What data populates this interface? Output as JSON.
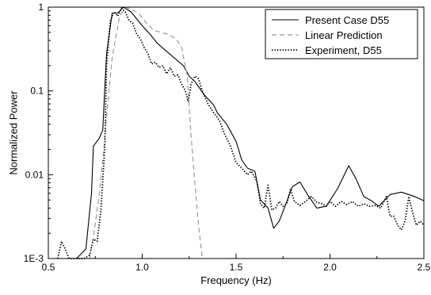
{
  "chart_data": {
    "type": "line",
    "title": "",
    "xlabel": "Frequency (Hz)",
    "ylabel": "Normalized Power",
    "xlim": [
      0.5,
      2.5
    ],
    "ylim": [
      0.001,
      1
    ],
    "yscale": "log",
    "grid": false,
    "legend_position": "top-right",
    "x_ticks": [
      {
        "value": 0.5,
        "label": "0.5"
      },
      {
        "value": 1.0,
        "label": "1.0"
      },
      {
        "value": 1.5,
        "label": "1.5"
      },
      {
        "value": 2.0,
        "label": "2.0"
      },
      {
        "value": 2.5,
        "label": "2.5"
      }
    ],
    "y_ticks": [
      {
        "value": 0.001,
        "label": "1E-3"
      },
      {
        "value": 0.01,
        "label": "0.01"
      },
      {
        "value": 0.1,
        "label": "0.1"
      },
      {
        "value": 1,
        "label": "1"
      }
    ],
    "series": [
      {
        "name": "Present Case D55",
        "style": "solid",
        "color": "#000000",
        "points": [
          [
            0.5,
            0.001
          ],
          [
            0.65,
            0.001
          ],
          [
            0.7,
            0.0013
          ],
          [
            0.73,
            0.006
          ],
          [
            0.74,
            0.022
          ],
          [
            0.77,
            0.027
          ],
          [
            0.79,
            0.034
          ],
          [
            0.8,
            0.1
          ],
          [
            0.81,
            0.28
          ],
          [
            0.84,
            0.85
          ],
          [
            0.87,
            0.85
          ],
          [
            0.9,
            1.0
          ],
          [
            0.94,
            0.88
          ],
          [
            1.0,
            0.6
          ],
          [
            1.04,
            0.48
          ],
          [
            1.08,
            0.37
          ],
          [
            1.12,
            0.31
          ],
          [
            1.16,
            0.26
          ],
          [
            1.22,
            0.2
          ],
          [
            1.25,
            0.15
          ],
          [
            1.28,
            0.13
          ],
          [
            1.33,
            0.09
          ],
          [
            1.38,
            0.068
          ],
          [
            1.4,
            0.055
          ],
          [
            1.45,
            0.04
          ],
          [
            1.5,
            0.025
          ],
          [
            1.53,
            0.015
          ],
          [
            1.56,
            0.012
          ],
          [
            1.6,
            0.011
          ],
          [
            1.63,
            0.005
          ],
          [
            1.67,
            0.004
          ],
          [
            1.7,
            0.0023
          ],
          [
            1.73,
            0.0028
          ],
          [
            1.8,
            0.0072
          ],
          [
            1.84,
            0.0082
          ],
          [
            1.88,
            0.0058
          ],
          [
            1.93,
            0.004
          ],
          [
            1.98,
            0.0042
          ],
          [
            2.04,
            0.0068
          ],
          [
            2.1,
            0.0128
          ],
          [
            2.14,
            0.0088
          ],
          [
            2.18,
            0.0055
          ],
          [
            2.22,
            0.0049
          ],
          [
            2.26,
            0.0042
          ],
          [
            2.32,
            0.0058
          ],
          [
            2.38,
            0.0062
          ],
          [
            2.45,
            0.0055
          ],
          [
            2.5,
            0.0049
          ]
        ]
      },
      {
        "name": "Linear Prediction",
        "style": "dashed",
        "color": "#9a9a9a",
        "points": [
          [
            0.72,
            0.001
          ],
          [
            0.74,
            0.0018
          ],
          [
            0.77,
            0.0055
          ],
          [
            0.8,
            0.025
          ],
          [
            0.81,
            0.05
          ],
          [
            0.84,
            0.25
          ],
          [
            0.88,
            0.8
          ],
          [
            0.92,
            0.99
          ],
          [
            0.95,
            0.92
          ],
          [
            0.98,
            0.85
          ],
          [
            1.02,
            0.66
          ],
          [
            1.06,
            0.53
          ],
          [
            1.1,
            0.5
          ],
          [
            1.14,
            0.47
          ],
          [
            1.18,
            0.42
          ],
          [
            1.21,
            0.33
          ],
          [
            1.24,
            0.15
          ],
          [
            1.26,
            0.03
          ],
          [
            1.28,
            0.008
          ],
          [
            1.3,
            0.0025
          ],
          [
            1.32,
            0.001
          ]
        ]
      },
      {
        "name": "Experiment, D55",
        "style": "dotted",
        "color": "#000000",
        "points": [
          [
            0.55,
            0.001
          ],
          [
            0.57,
            0.0016
          ],
          [
            0.59,
            0.0013
          ],
          [
            0.61,
            0.001
          ],
          [
            0.66,
            0.001
          ],
          [
            0.69,
            0.00085
          ],
          [
            0.72,
            0.0011
          ],
          [
            0.74,
            0.0017
          ],
          [
            0.76,
            0.0016
          ],
          [
            0.78,
            0.0038
          ],
          [
            0.8,
            0.02
          ],
          [
            0.81,
            0.2
          ],
          [
            0.83,
            0.68
          ],
          [
            0.85,
            0.88
          ],
          [
            0.87,
            0.78
          ],
          [
            0.89,
            0.97
          ],
          [
            0.91,
            0.87
          ],
          [
            0.93,
            0.7
          ],
          [
            0.95,
            0.64
          ],
          [
            0.97,
            0.48
          ],
          [
            0.99,
            0.42
          ],
          [
            1.01,
            0.33
          ],
          [
            1.03,
            0.28
          ],
          [
            1.05,
            0.21
          ],
          [
            1.07,
            0.22
          ],
          [
            1.09,
            0.19
          ],
          [
            1.11,
            0.2
          ],
          [
            1.13,
            0.16
          ],
          [
            1.15,
            0.19
          ],
          [
            1.17,
            0.15
          ],
          [
            1.19,
            0.155
          ],
          [
            1.21,
            0.12
          ],
          [
            1.23,
            0.1
          ],
          [
            1.245,
            0.075
          ],
          [
            1.26,
            0.12
          ],
          [
            1.28,
            0.15
          ],
          [
            1.3,
            0.14
          ],
          [
            1.32,
            0.1
          ],
          [
            1.35,
            0.07
          ],
          [
            1.38,
            0.055
          ],
          [
            1.41,
            0.045
          ],
          [
            1.44,
            0.03
          ],
          [
            1.47,
            0.022
          ],
          [
            1.5,
            0.014
          ],
          [
            1.53,
            0.012
          ],
          [
            1.56,
            0.01
          ],
          [
            1.58,
            0.011
          ],
          [
            1.61,
            0.0085
          ],
          [
            1.63,
            0.0045
          ],
          [
            1.65,
            0.004
          ],
          [
            1.67,
            0.0075
          ],
          [
            1.69,
            0.0038
          ],
          [
            1.71,
            0.004
          ],
          [
            1.73,
            0.0048
          ],
          [
            1.75,
            0.0042
          ],
          [
            1.77,
            0.0045
          ],
          [
            1.79,
            0.0068
          ],
          [
            1.81,
            0.0048
          ],
          [
            1.84,
            0.0043
          ],
          [
            1.87,
            0.0048
          ],
          [
            1.9,
            0.0055
          ],
          [
            1.93,
            0.0047
          ],
          [
            1.96,
            0.0045
          ],
          [
            1.98,
            0.0042
          ],
          [
            2.0,
            0.0048
          ],
          [
            2.03,
            0.0042
          ],
          [
            2.06,
            0.0048
          ],
          [
            2.09,
            0.0044
          ],
          [
            2.12,
            0.0048
          ],
          [
            2.15,
            0.0042
          ],
          [
            2.18,
            0.0045
          ],
          [
            2.21,
            0.0042
          ],
          [
            2.24,
            0.0043
          ],
          [
            2.27,
            0.004
          ],
          [
            2.3,
            0.0055
          ],
          [
            2.32,
            0.0032
          ],
          [
            2.34,
            0.0032
          ],
          [
            2.36,
            0.0025
          ],
          [
            2.38,
            0.0022
          ],
          [
            2.4,
            0.0028
          ],
          [
            2.42,
            0.0055
          ],
          [
            2.44,
            0.0035
          ],
          [
            2.46,
            0.0025
          ],
          [
            2.48,
            0.0028
          ],
          [
            2.5,
            0.0025
          ]
        ]
      }
    ]
  }
}
